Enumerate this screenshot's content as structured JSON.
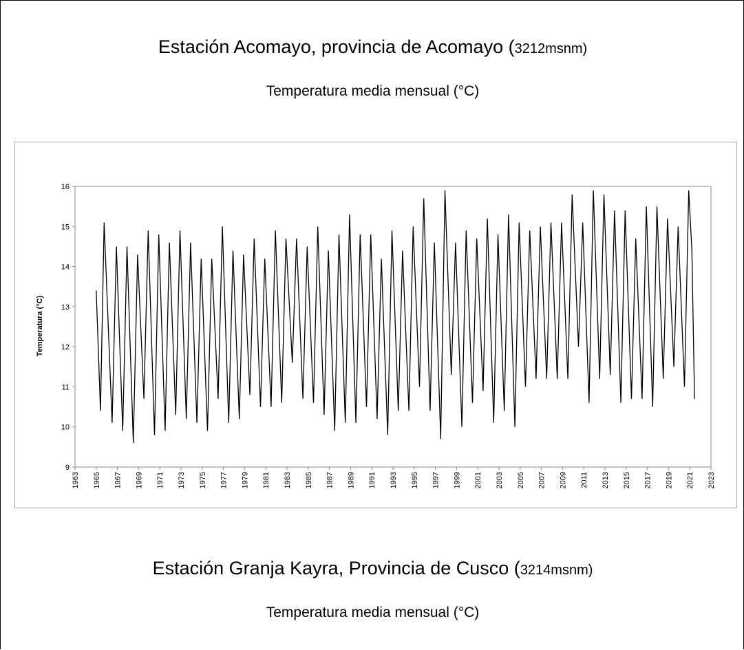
{
  "sections": [
    {
      "title_main": "Estación Acomayo, provincia de Acomayo (",
      "title_altitude": "3212msnm)",
      "subtitle": "Temperatura media mensual (°C)"
    },
    {
      "title_main": "Estación Granja Kayra, Provincia de Cusco (",
      "title_altitude": "3214msnm)",
      "subtitle": "Temperatura media mensual (°C)"
    }
  ],
  "chart_data": {
    "type": "line",
    "y_label": "Temperatura (°C)",
    "x": [
      1965.0,
      1965.4,
      1965.75,
      1966.5,
      1966.9,
      1967.5,
      1967.9,
      1968.5,
      1968.9,
      1969.5,
      1969.9,
      1970.5,
      1970.9,
      1971.5,
      1971.9,
      1972.5,
      1972.9,
      1973.5,
      1973.9,
      1974.5,
      1974.9,
      1975.5,
      1975.9,
      1976.5,
      1976.9,
      1977.5,
      1977.9,
      1978.5,
      1978.9,
      1979.5,
      1979.9,
      1980.5,
      1980.9,
      1981.5,
      1981.9,
      1982.5,
      1982.9,
      1983.5,
      1983.9,
      1984.5,
      1984.9,
      1985.5,
      1985.9,
      1986.5,
      1986.9,
      1987.5,
      1987.9,
      1988.5,
      1988.9,
      1989.5,
      1989.9,
      1990.5,
      1990.9,
      1991.5,
      1991.9,
      1992.5,
      1992.9,
      1993.5,
      1993.9,
      1994.5,
      1994.9,
      1995.5,
      1995.9,
      1996.5,
      1996.9,
      1997.5,
      1997.9,
      1998.5,
      1998.9,
      1999.5,
      1999.9,
      2000.5,
      2000.9,
      2001.5,
      2001.9,
      2002.5,
      2002.9,
      2003.5,
      2003.9,
      2004.5,
      2004.9,
      2005.5,
      2005.9,
      2006.5,
      2006.9,
      2007.5,
      2007.9,
      2008.5,
      2008.9,
      2009.5,
      2009.9,
      2010.5,
      2010.9,
      2011.5,
      2011.9,
      2012.5,
      2012.9,
      2013.5,
      2013.9,
      2014.5,
      2014.9,
      2015.5,
      2015.9,
      2016.5,
      2016.9,
      2017.5,
      2017.9,
      2018.5,
      2018.9,
      2019.5,
      2019.9,
      2020.5,
      2020.9,
      2021.2,
      2021.45
    ],
    "series": [
      {
        "color": "#000000",
        "values": [
          13.4,
          10.4,
          15.1,
          10.1,
          14.5,
          9.9,
          14.5,
          9.6,
          14.3,
          10.7,
          14.9,
          9.8,
          14.8,
          9.9,
          14.6,
          10.3,
          14.9,
          10.2,
          14.6,
          10.1,
          14.2,
          9.9,
          14.2,
          10.7,
          15.0,
          10.1,
          14.4,
          10.2,
          14.3,
          10.8,
          14.7,
          10.5,
          14.2,
          10.5,
          14.9,
          10.6,
          14.7,
          11.6,
          14.7,
          10.7,
          14.5,
          10.6,
          15.0,
          10.3,
          14.4,
          9.9,
          14.8,
          10.1,
          15.3,
          10.1,
          14.8,
          10.5,
          14.8,
          10.2,
          14.2,
          9.8,
          14.9,
          10.4,
          14.4,
          10.4,
          15.0,
          11.0,
          15.7,
          10.4,
          14.6,
          9.7,
          15.9,
          11.3,
          14.6,
          10.0,
          14.9,
          10.6,
          14.7,
          10.9,
          15.2,
          10.1,
          14.8,
          10.4,
          15.3,
          10.0,
          15.1,
          11.0,
          14.9,
          11.2,
          15.0,
          11.2,
          15.1,
          11.2,
          15.1,
          11.2,
          15.8,
          12.0,
          15.1,
          10.6,
          15.9,
          11.2,
          15.8,
          11.3,
          15.4,
          10.6,
          15.4,
          10.7,
          14.7,
          10.7,
          15.5,
          10.5,
          15.5,
          11.2,
          15.2,
          11.5,
          15.0,
          11.0,
          15.9,
          14.4,
          10.7
        ]
      }
    ],
    "xlim": [
      1963,
      2023
    ],
    "xticks": [
      1963,
      1965,
      1967,
      1969,
      1971,
      1973,
      1975,
      1977,
      1979,
      1981,
      1983,
      1985,
      1987,
      1989,
      1991,
      1993,
      1995,
      1997,
      1999,
      2001,
      2003,
      2005,
      2007,
      2009,
      2011,
      2013,
      2015,
      2017,
      2019,
      2021,
      2023
    ],
    "ylim": [
      9,
      16
    ],
    "yticks": [
      9,
      10,
      11,
      12,
      13,
      14,
      15,
      16
    ]
  }
}
